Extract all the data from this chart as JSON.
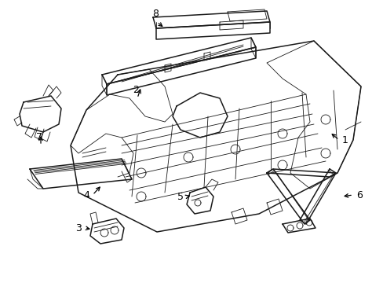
{
  "background_color": "#ffffff",
  "line_color": "#1a1a1a",
  "figure_width": 4.89,
  "figure_height": 3.6,
  "dpi": 100,
  "lw_main": 1.1,
  "lw_thin": 0.6,
  "lw_detail": 0.5
}
